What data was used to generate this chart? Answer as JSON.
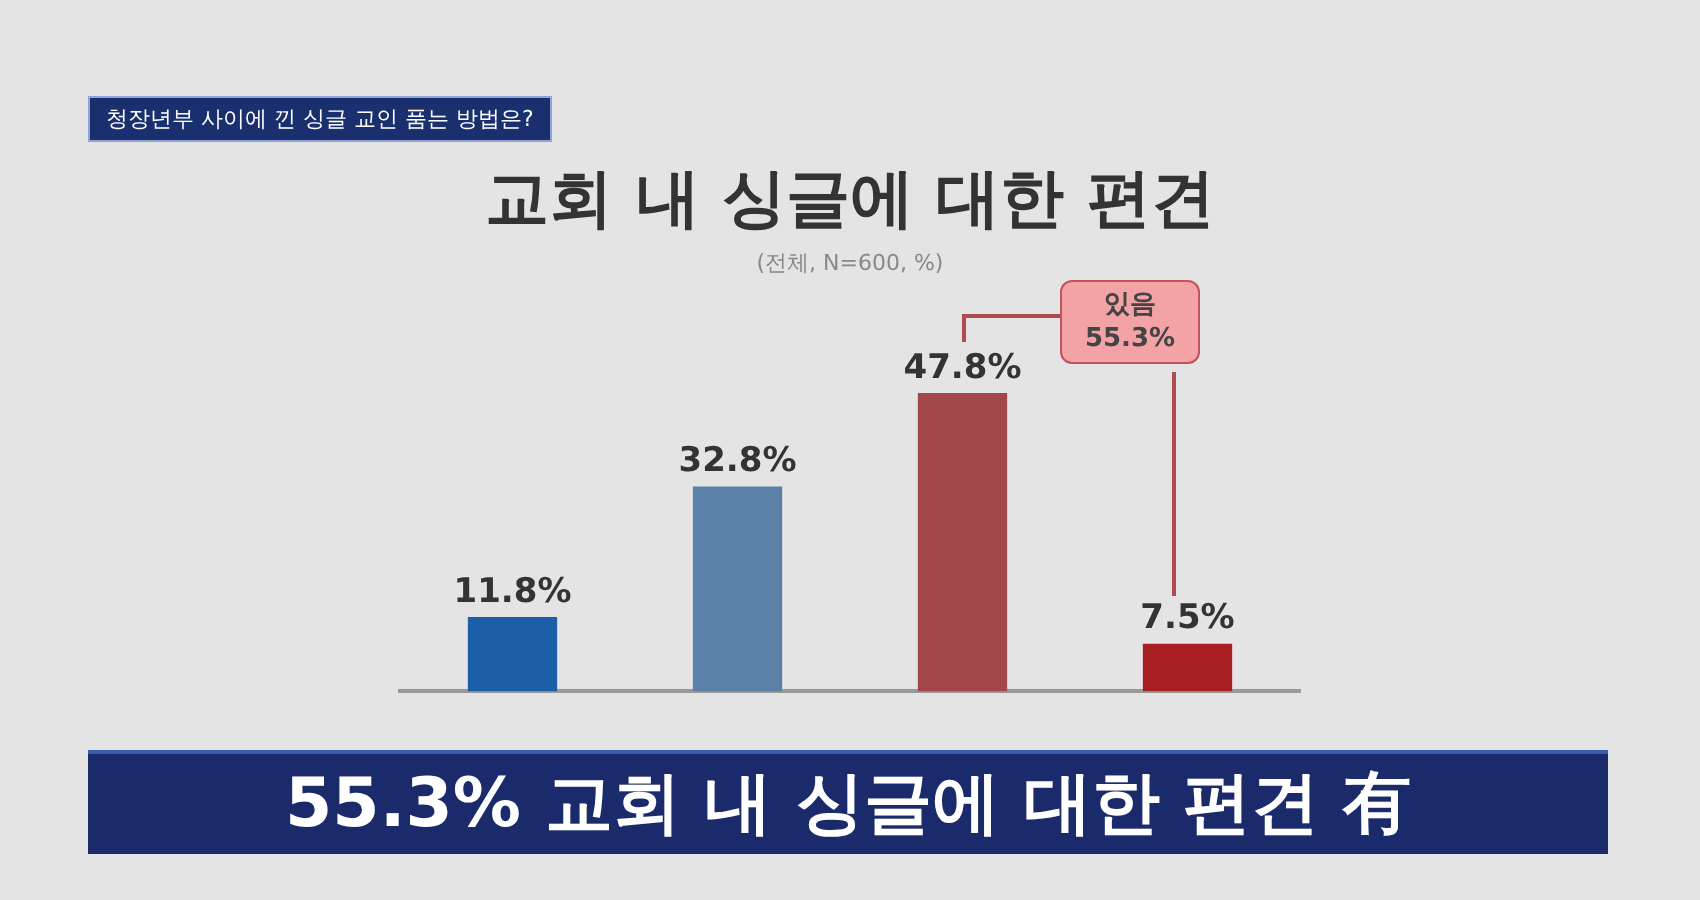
{
  "chart_data": {
    "type": "bar",
    "title": "교회 내 싱글에 대한 편견",
    "subtitle": "(전체, N=600, %)",
    "categories": [
      null,
      null,
      null,
      null
    ],
    "values": [
      11.8,
      32.8,
      47.8,
      7.5
    ],
    "colors": [
      "#1c5ea8",
      "#5a80a8",
      "#a3474b",
      "#a81e22"
    ],
    "value_labels": [
      "11.8%",
      "32.8%",
      "47.8%",
      "7.5%"
    ],
    "grid": false,
    "legend": false,
    "annotations": [
      "청장년부 사이에 낀 싱글 교인 품는 방법은?",
      "있음 55.3%",
      "55.3% 교회 내 싱글에 대한 편견 有"
    ]
  }
}
